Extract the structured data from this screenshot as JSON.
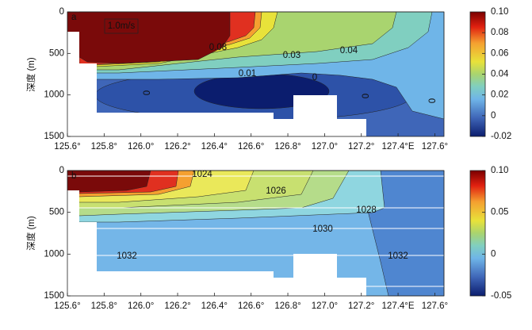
{
  "chart_data": [
    {
      "type": "contour",
      "panel_label": "a",
      "ylabel": "深度 (m)",
      "xlim": [
        125.6,
        127.65
      ],
      "xticks": [
        {
          "value": 125.6,
          "label": "125.6°"
        },
        {
          "value": 125.8,
          "label": "125.8°"
        },
        {
          "value": 126.0,
          "label": "126.0°"
        },
        {
          "value": 126.2,
          "label": "126.2°"
        },
        {
          "value": 126.4,
          "label": "126.4°"
        },
        {
          "value": 126.6,
          "label": "126.6°"
        },
        {
          "value": 126.8,
          "label": "126.8°"
        },
        {
          "value": 127.0,
          "label": "127.0°"
        },
        {
          "value": 127.2,
          "label": "127.2°"
        },
        {
          "value": 127.4,
          "label": "127.4°E"
        },
        {
          "value": 127.6,
          "label": "127.6°"
        }
      ],
      "ylim": [
        0,
        1500
      ],
      "y_inverted": true,
      "yticks": [
        0,
        500,
        1000,
        1500
      ],
      "colorbar": {
        "lim": [
          -0.02,
          0.1
        ],
        "ticks": [
          {
            "value": 0.1,
            "label": "0.10"
          },
          0.08,
          0.06,
          0.04,
          0.02,
          0,
          -0.02
        ]
      },
      "annotations": [
        "1.0m/s",
        "0.08",
        "0.03",
        "0.04",
        "0.01",
        "0",
        "0",
        "0",
        "0"
      ]
    },
    {
      "type": "contour",
      "panel_label": "b",
      "ylabel": "深度 (m)",
      "xlim": [
        125.6,
        127.65
      ],
      "xticks": [
        {
          "value": 125.6,
          "label": "125.6°"
        },
        {
          "value": 125.8,
          "label": "125.8°"
        },
        {
          "value": 126.0,
          "label": "126.0°"
        },
        {
          "value": 126.2,
          "label": "126.2°"
        },
        {
          "value": 126.4,
          "label": "126.4°"
        },
        {
          "value": 126.6,
          "label": "126.6°"
        },
        {
          "value": 126.8,
          "label": "126.8°"
        },
        {
          "value": 127.0,
          "label": "127.0°"
        },
        {
          "value": 127.2,
          "label": "127.2°"
        },
        {
          "value": 127.4,
          "label": "127.4°E"
        },
        {
          "value": 127.6,
          "label": "127.6°"
        }
      ],
      "ylim": [
        0,
        1500
      ],
      "y_inverted": true,
      "yticks": [
        0,
        500,
        1000,
        1500
      ],
      "colorbar": {
        "lim": [
          -0.05,
          0.1
        ],
        "ticks": [
          {
            "value": 0.1,
            "label": "0.10"
          },
          0.05,
          0,
          -0.05
        ]
      },
      "annotations": [
        "1024",
        "1026",
        "1028",
        "1030",
        "1032",
        "1032"
      ]
    }
  ]
}
